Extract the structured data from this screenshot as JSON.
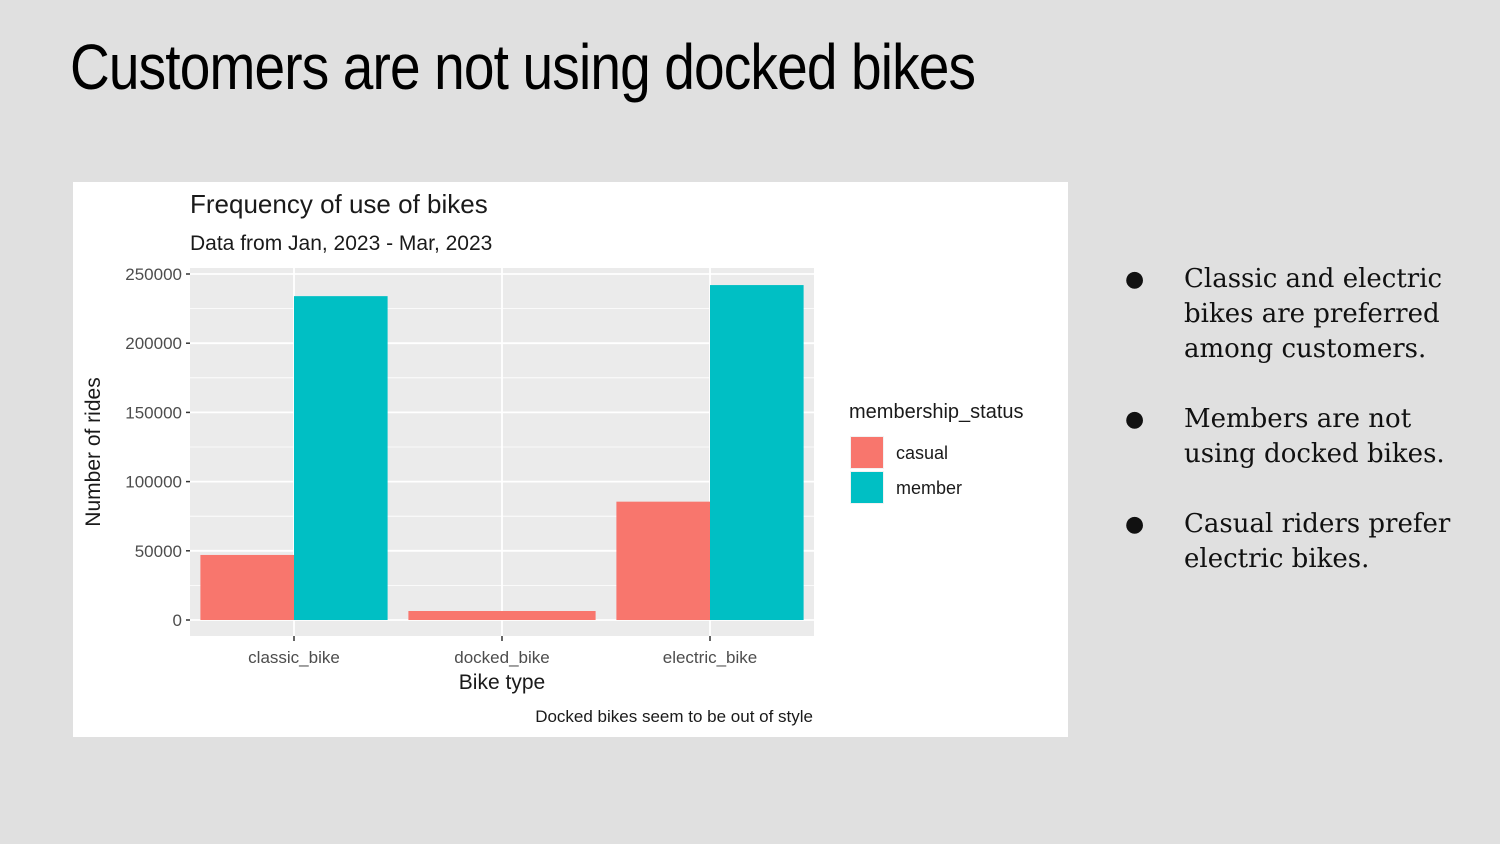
{
  "slide": {
    "title": "Customers are not using docked bikes"
  },
  "bullets": [
    "Classic and electric bikes are preferred among customers.",
    "Members are not using docked bikes.",
    "Casual riders prefer electric bikes."
  ],
  "chart_data": {
    "type": "bar",
    "title": "Frequency of use of bikes",
    "subtitle": "Data from Jan, 2023 - Mar, 2023",
    "xlabel": "Bike type",
    "ylabel": "Number of rides",
    "caption": "Docked bikes seem to be out of style",
    "categories": [
      "classic_bike",
      "docked_bike",
      "electric_bike"
    ],
    "series": [
      {
        "name": "casual",
        "color": "#f8766d",
        "values": [
          47000,
          6500,
          85500
        ]
      },
      {
        "name": "member",
        "color": "#00bfc4",
        "values": [
          234000,
          0,
          242000
        ]
      }
    ],
    "ylim": [
      0,
      250000
    ],
    "yticks": [
      0,
      50000,
      100000,
      150000,
      200000,
      250000
    ],
    "ytick_labels": [
      "0",
      "50000",
      "100000",
      "150000",
      "200000",
      "250000"
    ],
    "legend": {
      "title": "membership_status",
      "position": "right"
    },
    "grid": true,
    "panel_color": "#ebebeb"
  }
}
